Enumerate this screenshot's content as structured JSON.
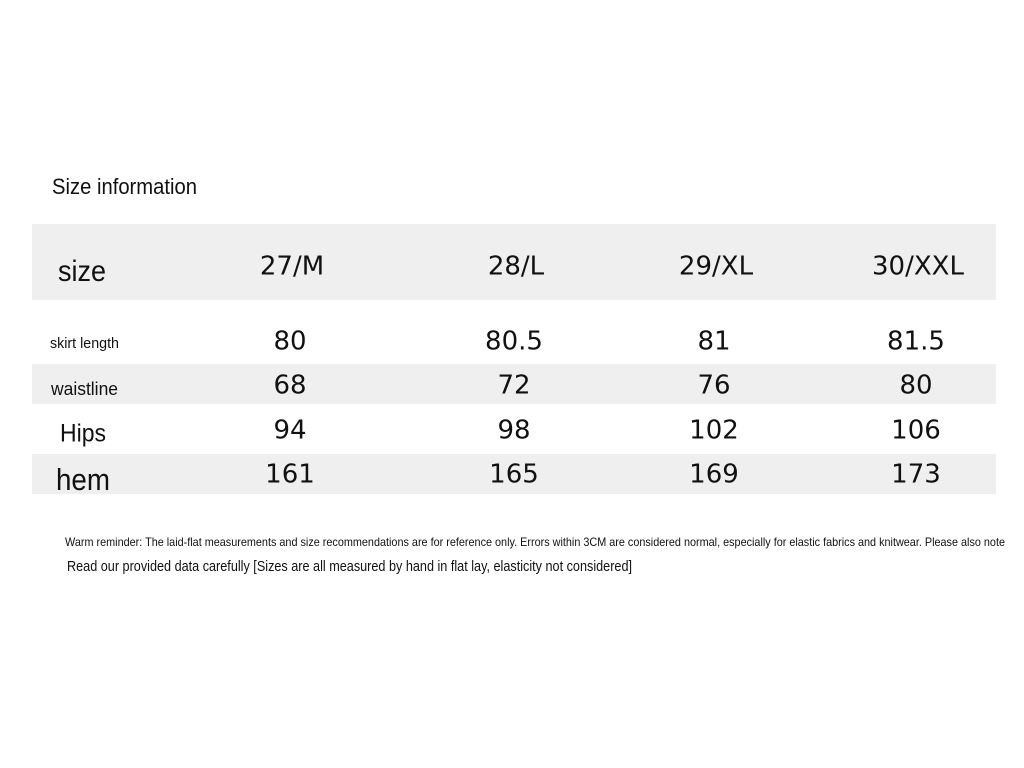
{
  "title": "Size information",
  "table": {
    "header": [
      "size",
      "27/M",
      "28/L",
      "29/XL",
      "30/XXL"
    ],
    "rows": [
      [
        "skirt length",
        "80",
        "80.5",
        "81",
        "81.5"
      ],
      [
        "waistline",
        "68",
        "72",
        "76",
        "80"
      ],
      [
        "Hips",
        "94",
        "98",
        "102",
        "106"
      ],
      [
        "hem",
        "161",
        "165",
        "169",
        "173"
      ]
    ]
  },
  "notes": [
    "Warm reminder: The laid-flat measurements and size recommendations are for reference only. Errors within 3CM are considered normal, especially for elastic fabrics and knitwear. Please also note",
    "Read our provided data carefully [Sizes are all measured by hand in flat lay, elasticity not considered]"
  ]
}
